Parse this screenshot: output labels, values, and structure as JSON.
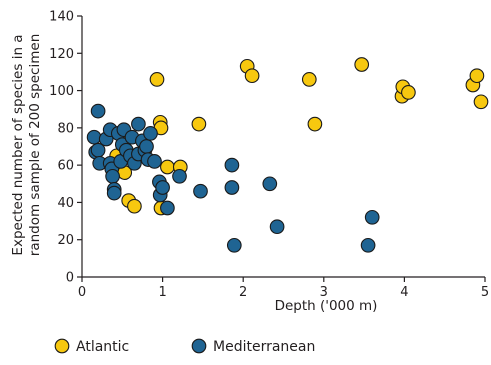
{
  "chart_data": {
    "type": "scatter",
    "title": "",
    "xlabel": "Depth ('000 m)",
    "ylabel": [
      "Expected number of species in a",
      "random sample of 200 specimen"
    ],
    "xlim": [
      0,
      5
    ],
    "ylim": [
      0,
      140
    ],
    "xticks": [
      "0",
      "1",
      "2",
      "3",
      "4",
      "5"
    ],
    "yticks": [
      "0",
      "20",
      "40",
      "60",
      "80",
      "100",
      "120",
      "140"
    ],
    "grid": false,
    "legend_position": "bottom",
    "series": [
      {
        "name": "Atlantic",
        "color": "#f7c80f",
        "stroke": "#1a1a1a",
        "points": [
          [
            0.43,
            65
          ],
          [
            0.52,
            75
          ],
          [
            0.53,
            56
          ],
          [
            0.58,
            41
          ],
          [
            0.65,
            38
          ],
          [
            0.93,
            106
          ],
          [
            0.97,
            83
          ],
          [
            0.98,
            80
          ],
          [
            0.98,
            37
          ],
          [
            1.06,
            59
          ],
          [
            1.22,
            59
          ],
          [
            1.45,
            82
          ],
          [
            2.05,
            113
          ],
          [
            2.11,
            108
          ],
          [
            2.82,
            106
          ],
          [
            2.89,
            82
          ],
          [
            3.47,
            114
          ],
          [
            3.97,
            97
          ],
          [
            3.98,
            102
          ],
          [
            4.05,
            99
          ],
          [
            4.85,
            103
          ],
          [
            4.9,
            108
          ],
          [
            4.95,
            94
          ]
        ]
      },
      {
        "name": "Mediterranean",
        "color": "#1f6493",
        "stroke": "#1a1a1a",
        "points": [
          [
            0.15,
            75
          ],
          [
            0.17,
            67
          ],
          [
            0.2,
            89
          ],
          [
            0.2,
            68
          ],
          [
            0.22,
            61
          ],
          [
            0.3,
            74
          ],
          [
            0.35,
            79
          ],
          [
            0.35,
            61
          ],
          [
            0.37,
            58
          ],
          [
            0.38,
            54
          ],
          [
            0.4,
            47
          ],
          [
            0.4,
            45
          ],
          [
            0.45,
            77
          ],
          [
            0.48,
            62
          ],
          [
            0.5,
            71
          ],
          [
            0.52,
            79
          ],
          [
            0.55,
            68
          ],
          [
            0.6,
            65
          ],
          [
            0.62,
            75
          ],
          [
            0.65,
            61
          ],
          [
            0.7,
            82
          ],
          [
            0.7,
            66
          ],
          [
            0.75,
            73
          ],
          [
            0.78,
            68
          ],
          [
            0.8,
            70
          ],
          [
            0.82,
            63
          ],
          [
            0.85,
            77
          ],
          [
            0.9,
            62
          ],
          [
            0.96,
            51
          ],
          [
            0.97,
            44
          ],
          [
            1.0,
            48
          ],
          [
            1.06,
            37
          ],
          [
            1.21,
            54
          ],
          [
            1.47,
            46
          ],
          [
            1.86,
            60
          ],
          [
            1.86,
            48
          ],
          [
            1.89,
            17
          ],
          [
            2.33,
            50
          ],
          [
            2.42,
            27
          ],
          [
            3.55,
            17
          ],
          [
            3.6,
            32
          ]
        ]
      }
    ]
  }
}
